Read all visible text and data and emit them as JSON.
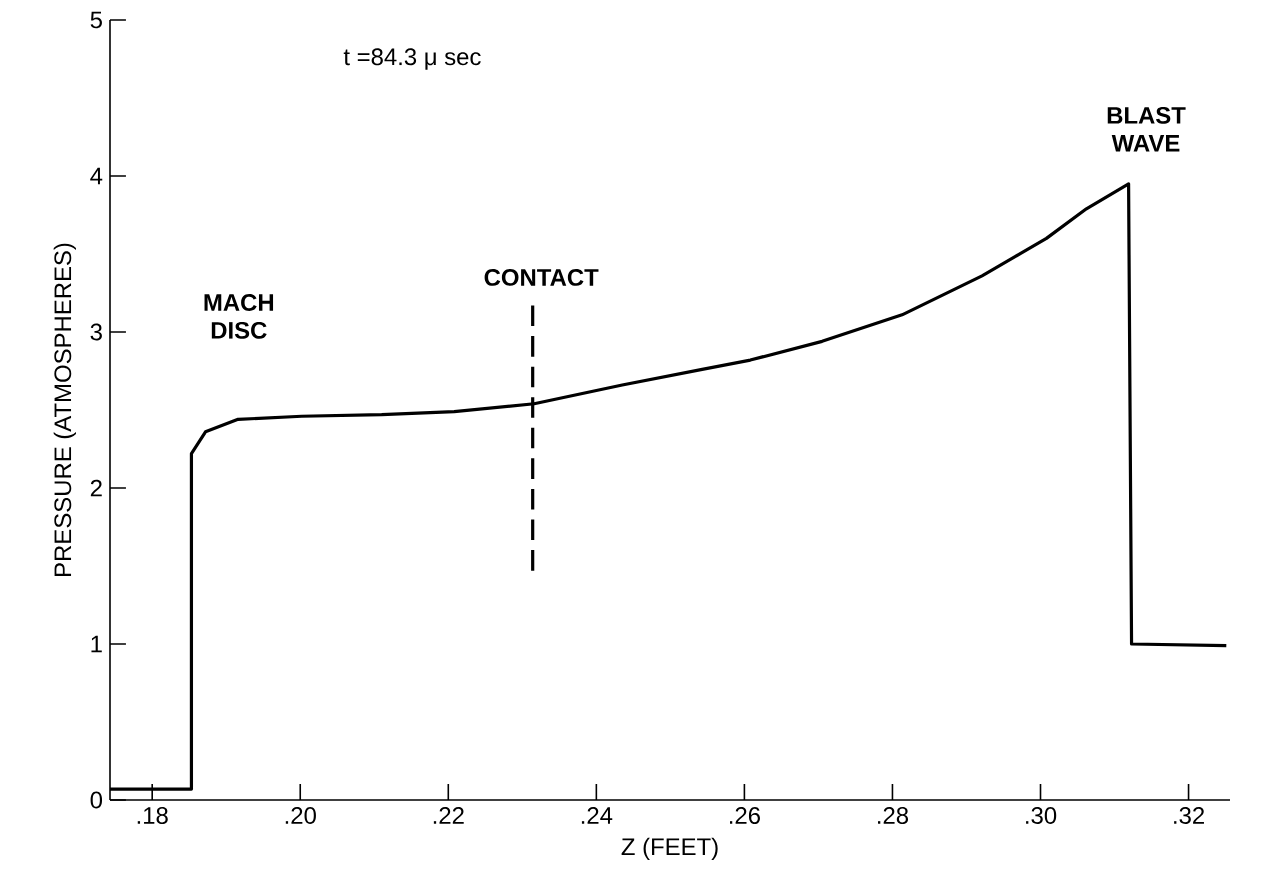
{
  "chart_data": {
    "type": "line",
    "xlabel": "Z (FEET)",
    "ylabel": "PRESSURE (ATMOSPHERES)",
    "xlim": [
      0.1743,
      0.3256
    ],
    "ylim": [
      0,
      5
    ],
    "xticks": [
      {
        "value": 0.18,
        "label": ".18"
      },
      {
        "value": 0.2,
        "label": ".20"
      },
      {
        "value": 0.22,
        "label": ".22"
      },
      {
        "value": 0.24,
        "label": ".24"
      },
      {
        "value": 0.26,
        "label": ".26"
      },
      {
        "value": 0.28,
        "label": ".28"
      },
      {
        "value": 0.3,
        "label": ".30"
      },
      {
        "value": 0.32,
        "label": ".32"
      }
    ],
    "yticks": [
      0,
      1,
      2,
      3,
      4,
      5
    ],
    "grid": false,
    "marker": "none",
    "series": [
      {
        "color": "#000000",
        "line_style": "solid",
        "x": [
          0.1743,
          0.1853,
          0.1853,
          0.1872,
          0.1916,
          0.2002,
          0.211,
          0.2208,
          0.2316,
          0.2435,
          0.2543,
          0.2608,
          0.2705,
          0.2813,
          0.2921,
          0.3008,
          0.3062,
          0.3119,
          0.3123,
          0.3251
        ],
        "values": [
          0.07,
          0.07,
          2.22,
          2.36,
          2.44,
          2.46,
          2.47,
          2.49,
          2.54,
          2.66,
          2.76,
          2.82,
          2.94,
          3.11,
          3.36,
          3.6,
          3.79,
          3.95,
          1.0,
          0.99
        ]
      },
      {
        "color": "#000000",
        "line_style": "dashed",
        "x": [
          0.2314,
          0.2314
        ],
        "values": [
          1.47,
          3.17
        ]
      }
    ],
    "annotations": [
      "t =84.3 μ sec",
      "MACH DISC",
      "CONTACT",
      "BLAST WAVE"
    ]
  }
}
